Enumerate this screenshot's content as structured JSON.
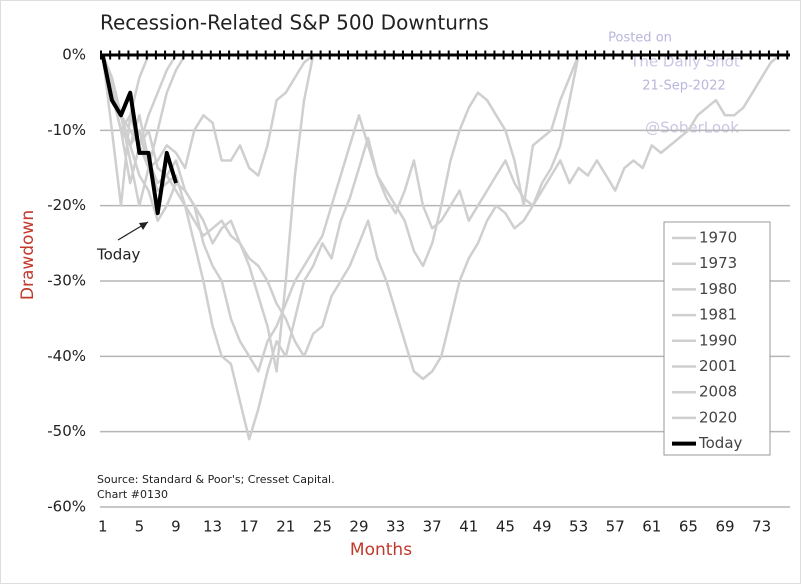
{
  "chart_data": {
    "type": "line",
    "title": "Recession-Related S&P 500 Downturns",
    "xlabel": "Months",
    "ylabel": "Drawdown",
    "source": "Source: Standard & Poor's; Cresset Capital.",
    "chart_id": "Chart #0130",
    "annotation": "Today",
    "watermark": [
      "Posted on",
      "The Daily Shot",
      "21-Sep-2022",
      "@SoberLook"
    ],
    "x": [
      1,
      2,
      3,
      4,
      5,
      6,
      7,
      8,
      9,
      10,
      11,
      12,
      13,
      14,
      15,
      16,
      17,
      18,
      19,
      20,
      21,
      22,
      23,
      24,
      25,
      26,
      27,
      28,
      29,
      30,
      31,
      32,
      33,
      34,
      35,
      36,
      37,
      38,
      39,
      40,
      41,
      42,
      43,
      44,
      45,
      46,
      47,
      48,
      49,
      50,
      51,
      52,
      53,
      54,
      55,
      56,
      57,
      58,
      59,
      60,
      61,
      62,
      63,
      64,
      65,
      66,
      67,
      68,
      69,
      70,
      71,
      72,
      73,
      74,
      75
    ],
    "xlim": [
      0.7,
      76.1
    ],
    "xticks": [
      1,
      5,
      9,
      13,
      17,
      21,
      25,
      29,
      33,
      37,
      41,
      45,
      49,
      53,
      57,
      61,
      65,
      69,
      73
    ],
    "ylim": [
      -60,
      0
    ],
    "yticks": [
      {
        "value": 0,
        "label": "0%"
      },
      {
        "value": -10,
        "label": "-10%"
      },
      {
        "value": -20,
        "label": "-20%"
      },
      {
        "value": -30,
        "label": "-30%"
      },
      {
        "value": -40,
        "label": "-40%"
      },
      {
        "value": -50,
        "label": "-50%"
      },
      {
        "value": -60,
        "label": "-60%"
      }
    ],
    "grid": true,
    "legend": "right",
    "series": [
      {
        "name": "1970",
        "color": "#cfcfcf",
        "values": [
          0,
          -5,
          -10,
          -12,
          -8,
          -14,
          -17,
          -16,
          -18,
          -20,
          -22,
          -24,
          -23,
          -22,
          -24,
          -25,
          -28,
          -32,
          -36,
          -42,
          -30,
          -16,
          -6,
          0,
          null,
          null,
          null,
          null,
          null,
          null,
          null,
          null,
          null,
          null,
          null,
          null,
          null,
          null,
          null,
          null,
          null,
          null,
          null,
          null,
          null,
          null,
          null,
          null,
          null,
          null,
          null,
          null,
          null,
          null,
          null,
          null,
          null,
          null,
          null,
          null,
          null,
          null,
          null,
          null,
          null,
          null,
          null,
          null,
          null,
          null,
          null,
          null,
          null,
          null,
          null
        ]
      },
      {
        "name": "1973",
        "color": "#cfcfcf",
        "values": [
          0,
          -3,
          -8,
          -12,
          -10,
          -15,
          -18,
          -17,
          -16,
          -20,
          -25,
          -30,
          -36,
          -40,
          -41,
          -46,
          -51,
          -47,
          -42,
          -38,
          -40,
          -35,
          -30,
          -28,
          -25,
          -27,
          -22,
          -19,
          -15,
          -11,
          -16,
          -19,
          -21,
          -18,
          -14,
          -20,
          -23,
          -22,
          -20,
          -18,
          -22,
          -20,
          -18,
          -16,
          -14,
          -17,
          -19,
          -20,
          -18,
          -16,
          -14,
          -17,
          -15,
          -16,
          -14,
          -16,
          -18,
          -15,
          -14,
          -15,
          -12,
          -13,
          -12,
          -11,
          -10,
          -8,
          -7,
          -6,
          -8,
          -8,
          -7,
          -5,
          -3,
          -1,
          0
        ]
      },
      {
        "name": "1980",
        "color": "#cfcfcf",
        "values": [
          0,
          -5,
          -10,
          -17,
          -12,
          -8,
          -5,
          -2,
          0,
          null,
          null,
          null,
          null,
          null,
          null,
          null,
          null,
          null,
          null,
          null,
          null,
          null,
          null,
          null,
          null,
          null,
          null,
          null,
          null,
          null,
          null,
          null,
          null,
          null,
          null,
          null,
          null,
          null,
          null,
          null,
          null,
          null,
          null,
          null,
          null,
          null,
          null,
          null,
          null,
          null,
          null,
          null,
          null,
          null,
          null,
          null,
          null,
          null,
          null,
          null,
          null,
          null,
          null,
          null,
          null,
          null,
          null,
          null,
          null,
          null,
          null,
          null,
          null,
          null,
          null
        ]
      },
      {
        "name": "1981",
        "color": "#cfcfcf",
        "values": [
          0,
          -4,
          -8,
          -10,
          -12,
          -15,
          -14,
          -12,
          -13,
          -15,
          -10,
          -8,
          -9,
          -14,
          -14,
          -12,
          -15,
          -16,
          -12,
          -6,
          -5,
          -3,
          -1,
          0,
          null,
          null,
          null,
          null,
          null,
          null,
          null,
          null,
          null,
          null,
          null,
          null,
          null,
          null,
          null,
          null,
          null,
          null,
          null,
          null,
          null,
          null,
          null,
          null,
          null,
          null,
          null,
          null,
          null,
          null,
          null,
          null,
          null,
          null,
          null,
          null,
          null,
          null,
          null,
          null,
          null,
          null,
          null,
          null,
          null,
          null,
          null,
          null,
          null,
          null,
          null
        ]
      },
      {
        "name": "1990",
        "color": "#cfcfcf",
        "values": [
          0,
          -3,
          -8,
          -14,
          -20,
          -15,
          -10,
          -5,
          -2,
          0,
          null,
          null,
          null,
          null,
          null,
          null,
          null,
          null,
          null,
          null,
          null,
          null,
          null,
          null,
          null,
          null,
          null,
          null,
          null,
          null,
          null,
          null,
          null,
          null,
          null,
          null,
          null,
          null,
          null,
          null,
          null,
          null,
          null,
          null,
          null,
          null,
          null,
          null,
          null,
          null,
          null,
          null,
          null,
          null,
          null,
          null,
          null,
          null,
          null,
          null,
          null,
          null,
          null,
          null,
          null,
          null,
          null,
          null,
          null,
          null,
          null,
          null,
          null,
          null,
          null
        ]
      },
      {
        "name": "2001",
        "color": "#cfcfcf",
        "values": [
          0,
          -5,
          -10,
          -8,
          -12,
          -10,
          -15,
          -16,
          -14,
          -18,
          -20,
          -22,
          -25,
          -23,
          -22,
          -25,
          -27,
          -28,
          -30,
          -33,
          -35,
          -38,
          -40,
          -37,
          -36,
          -32,
          -30,
          -28,
          -25,
          -22,
          -27,
          -30,
          -34,
          -38,
          -42,
          -43,
          -42,
          -40,
          -35,
          -30,
          -27,
          -25,
          -22,
          -20,
          -21,
          -23,
          -22,
          -20,
          -17,
          -15,
          -12,
          -6,
          0,
          null,
          null,
          null,
          null,
          null,
          null,
          null,
          null,
          null,
          null,
          null,
          null,
          null,
          null,
          null,
          null,
          null,
          null,
          null,
          null,
          null,
          null
        ]
      },
      {
        "name": "2008",
        "color": "#cfcfcf",
        "values": [
          0,
          -4,
          -8,
          -12,
          -16,
          -18,
          -22,
          -20,
          -17,
          -18,
          -20,
          -25,
          -28,
          -30,
          -35,
          -38,
          -40,
          -42,
          -38,
          -36,
          -33,
          -30,
          -28,
          -26,
          -24,
          -20,
          -16,
          -12,
          -8,
          -12,
          -16,
          -18,
          -20,
          -22,
          -26,
          -28,
          -25,
          -20,
          -14,
          -10,
          -7,
          -5,
          -6,
          -8,
          -10,
          -14,
          -20,
          -12,
          -11,
          -10,
          -6,
          -3,
          0,
          null,
          null,
          null,
          null,
          null,
          null,
          null,
          null,
          null,
          null,
          null,
          null,
          null,
          null,
          null,
          null,
          null,
          null,
          null,
          null,
          null,
          null
        ]
      },
      {
        "name": "2020",
        "color": "#cfcfcf",
        "values": [
          0,
          -10,
          -20,
          -8,
          -3,
          0,
          null,
          null,
          null,
          null,
          null,
          null,
          null,
          null,
          null,
          null,
          null,
          null,
          null,
          null,
          null,
          null,
          null,
          null,
          null,
          null,
          null,
          null,
          null,
          null,
          null,
          null,
          null,
          null,
          null,
          null,
          null,
          null,
          null,
          null,
          null,
          null,
          null,
          null,
          null,
          null,
          null,
          null,
          null,
          null,
          null,
          null,
          null,
          null,
          null,
          null,
          null,
          null,
          null,
          null,
          null,
          null,
          null,
          null,
          null,
          null,
          null,
          null,
          null,
          null,
          null,
          null,
          null,
          null,
          null
        ]
      },
      {
        "name": "Today",
        "color": "#000000",
        "values": [
          0,
          -6,
          -8,
          -5,
          -13,
          -13,
          -21,
          -13,
          -17,
          null,
          null,
          null,
          null,
          null,
          null,
          null,
          null,
          null,
          null,
          null,
          null,
          null,
          null,
          null,
          null,
          null,
          null,
          null,
          null,
          null,
          null,
          null,
          null,
          null,
          null,
          null,
          null,
          null,
          null,
          null,
          null,
          null,
          null,
          null,
          null,
          null,
          null,
          null,
          null,
          null,
          null,
          null,
          null,
          null,
          null,
          null,
          null,
          null,
          null,
          null,
          null,
          null,
          null,
          null,
          null,
          null,
          null,
          null,
          null,
          null,
          null,
          null,
          null,
          null,
          null
        ]
      }
    ]
  }
}
